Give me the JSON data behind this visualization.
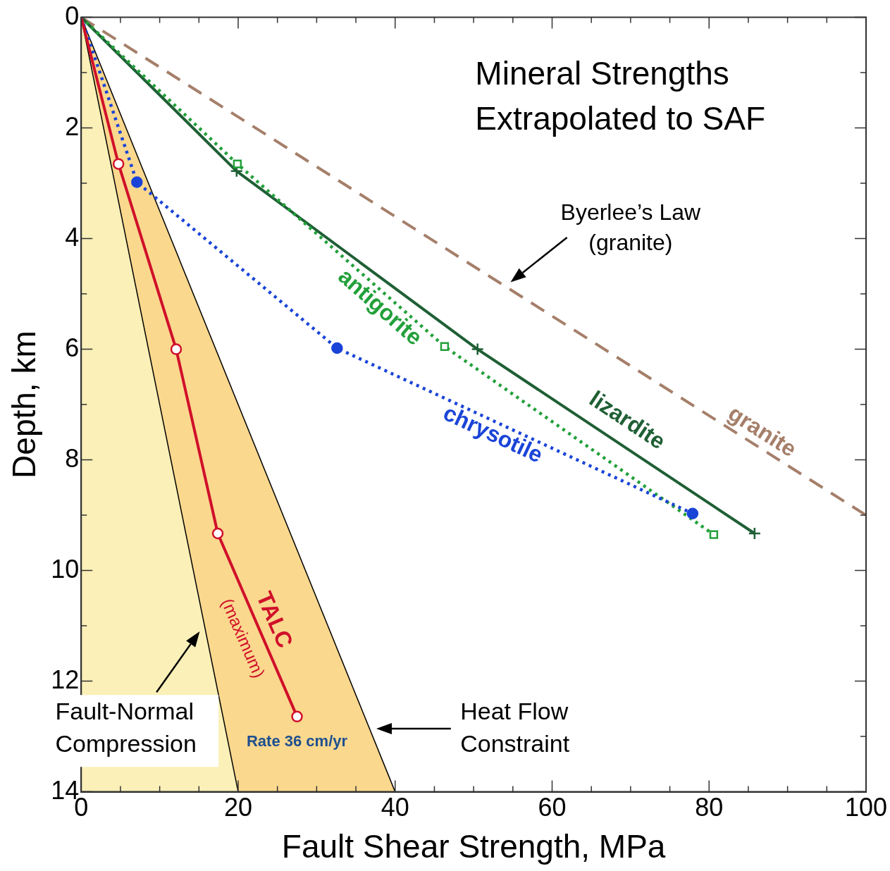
{
  "chart_data": {
    "type": "line",
    "title": "Mineral Strengths\nExtrapolated to SAF",
    "xlabel": "Fault Shear Strength, MPa",
    "ylabel": "Depth, km",
    "xlim": [
      0,
      100
    ],
    "ylim": [
      14,
      0
    ],
    "xticks": [
      0,
      {
        "value": 5,
        "label": null
      },
      20,
      {
        "value": 10,
        "label": null
      },
      {
        "value": 15,
        "label": null
      },
      {
        "value": 25,
        "label": null
      },
      {
        "value": 30,
        "label": null
      },
      {
        "value": 35,
        "label": null
      },
      40,
      {
        "value": 45,
        "label": null
      },
      {
        "value": 50,
        "label": null
      },
      {
        "value": 55,
        "label": null
      },
      60,
      {
        "value": 65,
        "label": null
      },
      {
        "value": 70,
        "label": null
      },
      {
        "value": 75,
        "label": null
      },
      80,
      {
        "value": 85,
        "label": null
      },
      {
        "value": 90,
        "label": null
      },
      {
        "value": 95,
        "label": null
      },
      100
    ],
    "yticks": [
      0,
      {
        "value": 1,
        "label": null
      },
      2,
      {
        "value": 3,
        "label": null
      },
      4,
      {
        "value": 5,
        "label": null
      },
      6,
      {
        "value": 7,
        "label": null
      },
      8,
      {
        "value": 9,
        "label": null
      },
      10,
      {
        "value": 11,
        "label": null
      },
      12,
      {
        "value": 13,
        "label": null
      },
      14
    ],
    "grid": false,
    "legend": false,
    "series": [
      {
        "type": "area",
        "color": "#fad88e",
        "x": [
          0,
          40
        ],
        "values": [
          0,
          14
        ]
      },
      {
        "type": "area",
        "color": "#faf0b8",
        "x": [
          0,
          20
        ],
        "values": [
          0,
          14
        ]
      },
      {
        "name": "granite",
        "type": "line",
        "color": "#a57f6a",
        "line_style": "dashed",
        "marker": "none",
        "x": [
          0,
          100
        ],
        "values": [
          0,
          9
        ]
      },
      {
        "name": "lizardite",
        "type": "line",
        "color": "#1f5f35",
        "line_style": "solid",
        "marker": "cross",
        "x": [
          0,
          19.8,
          50.5,
          85.8
        ],
        "values": [
          0,
          2.78,
          6.0,
          9.33
        ]
      },
      {
        "name": "antigorite",
        "type": "line",
        "color": "#22a03a",
        "line_style": "dotted",
        "marker": "square",
        "x": [
          0,
          19.9,
          46.3,
          80.6
        ],
        "values": [
          0,
          2.65,
          5.95,
          9.35
        ]
      },
      {
        "name": "chrysotile",
        "type": "line",
        "color": "#1a44d8",
        "line_style": "dotted",
        "marker": "circle",
        "x": [
          0,
          7.1,
          32.6,
          77.9
        ],
        "values": [
          0,
          2.98,
          5.98,
          8.97
        ]
      },
      {
        "name": "TALC",
        "type": "line",
        "color": "#d0102a",
        "line_style": "solid",
        "marker": "circle",
        "x": [
          0,
          4.75,
          12.1,
          17.4,
          27.5
        ],
        "values": [
          0,
          2.65,
          6.0,
          9.33,
          12.64
        ]
      }
    ],
    "annotations": [
      "Byerlee’s Law\n(granite)",
      "(maximum)",
      "Rate 36 cm/yr",
      "Fault-Normal\nCompression",
      "Heat Flow\nConstraint"
    ]
  }
}
